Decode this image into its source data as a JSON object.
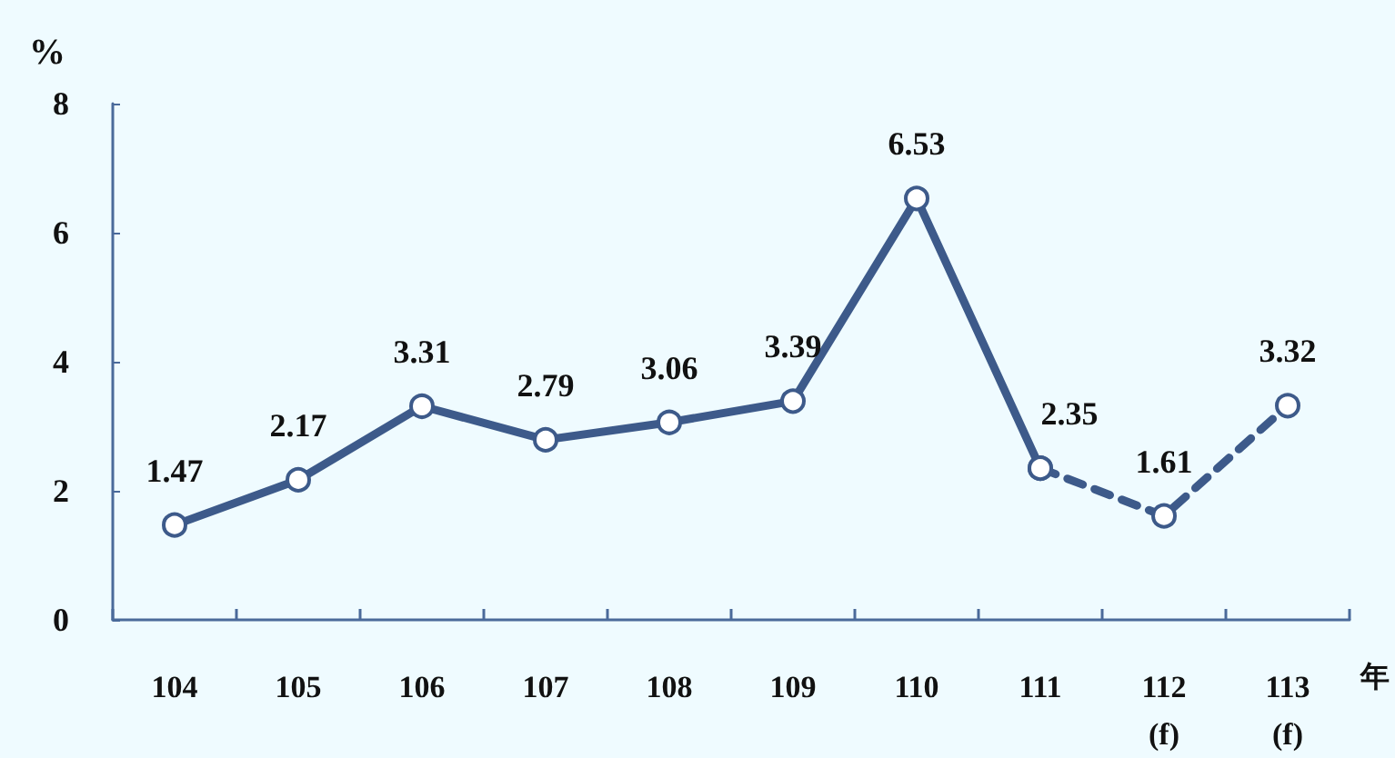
{
  "chart_data": {
    "type": "line",
    "categories": [
      "104",
      "105",
      "106",
      "107",
      "108",
      "109",
      "110",
      "111",
      "112\n(f)",
      "113\n(f)"
    ],
    "xlabel": "年",
    "ylabel": "%",
    "ylim": [
      0,
      8
    ],
    "yticks": [
      0,
      2,
      4,
      6,
      8
    ],
    "grid": false,
    "marker": "circle",
    "series": [
      {
        "color": "#3d5a8a",
        "line_style": "solid",
        "values": [
          1.47,
          2.17,
          3.31,
          2.79,
          3.06,
          3.39,
          6.53,
          2.35,
          null,
          null
        ],
        "value_labels": [
          "1.47",
          "2.17",
          "3.31",
          "2.79",
          "3.06",
          "3.39",
          "6.53",
          "2.35",
          null,
          null
        ]
      },
      {
        "color": "#3d5a8a",
        "line_style": "dashed",
        "values": [
          null,
          null,
          null,
          null,
          null,
          null,
          null,
          2.35,
          1.61,
          3.32
        ],
        "value_labels": [
          null,
          null,
          null,
          null,
          null,
          null,
          null,
          null,
          "1.61",
          "3.32"
        ]
      }
    ]
  }
}
